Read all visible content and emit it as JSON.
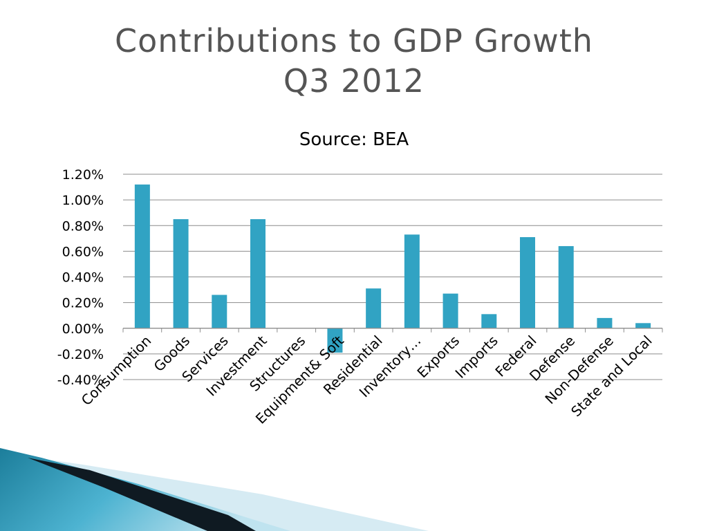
{
  "slide": {
    "title_line1": "Contributions to GDP Growth",
    "title_line2": "Q3 2012"
  },
  "colors": {
    "bar": "#31a3c3",
    "grid": "#8c8c8c",
    "title": "#555555",
    "text": "#000000"
  },
  "chart_data": {
    "type": "bar",
    "title": "Source: BEA",
    "xlabel": "",
    "ylabel": "",
    "ylim": [
      -0.4,
      1.2
    ],
    "yticks": [
      -0.4,
      -0.2,
      0.0,
      0.2,
      0.4,
      0.6,
      0.8,
      1.0,
      1.2
    ],
    "ytick_labels": [
      "-0.40%",
      "-0.20%",
      "0.00%",
      "0.20%",
      "0.40%",
      "0.60%",
      "0.80%",
      "1.00%",
      "1.20%"
    ],
    "grid": true,
    "legend": "none",
    "categories": [
      "Consumption",
      "Goods",
      "Services",
      "Investment",
      "Structures",
      "Equipment& Soft",
      "Residential",
      "Inventory…",
      "Exports",
      "Imports",
      "Federal",
      "Defense",
      "Non-Defense",
      "State and Local"
    ],
    "values": [
      1.12,
      0.85,
      0.26,
      0.85,
      0.0,
      -0.19,
      0.31,
      0.73,
      0.27,
      0.11,
      0.71,
      0.64,
      0.08,
      0.04
    ]
  }
}
